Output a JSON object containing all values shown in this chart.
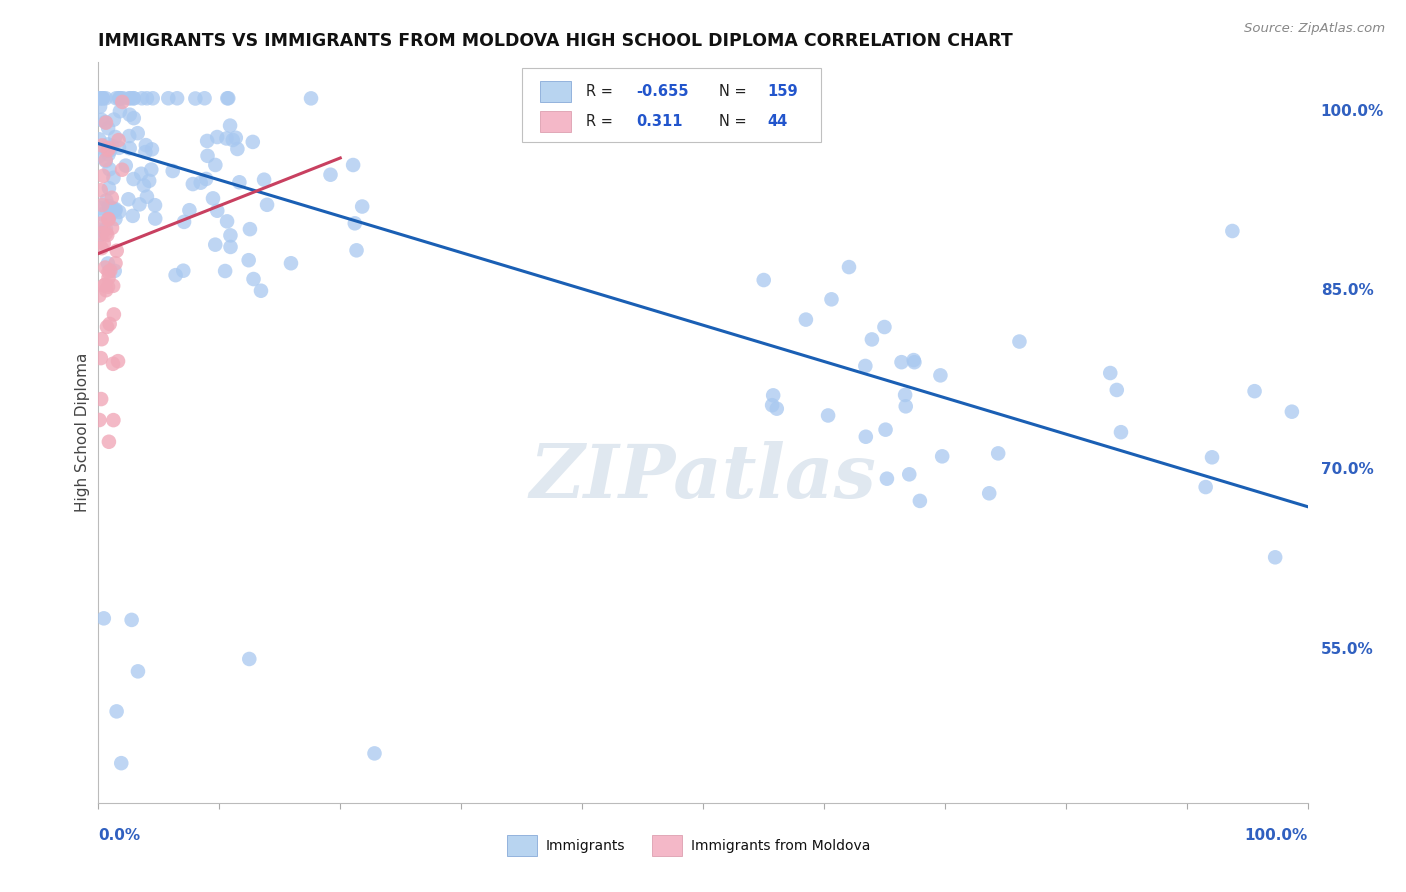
{
  "title": "IMMIGRANTS VS IMMIGRANTS FROM MOLDOVA HIGH SCHOOL DIPLOMA CORRELATION CHART",
  "source": "Source: ZipAtlas.com",
  "ylabel": "High School Diploma",
  "ylabel_right_ticks": [
    1.0,
    0.85,
    0.7,
    0.55
  ],
  "ylabel_right_labels": [
    "100.0%",
    "85.0%",
    "70.0%",
    "55.0%"
  ],
  "blue_R": -0.655,
  "blue_N": 159,
  "pink_R": 0.311,
  "pink_N": 44,
  "blue_color": "#a8c8f0",
  "pink_color": "#f0a8b8",
  "blue_line_color": "#1a5fb4",
  "pink_line_color": "#c84060",
  "watermark": "ZIPatlas",
  "background_color": "#ffffff",
  "grid_color": "#d8d8d8",
  "xlim": [
    0.0,
    1.0
  ],
  "ylim": [
    0.42,
    1.04
  ],
  "blue_line_x": [
    0.0,
    1.0
  ],
  "blue_line_y": [
    0.972,
    0.668
  ],
  "pink_line_x": [
    0.0,
    0.2
  ],
  "pink_line_y": [
    0.88,
    0.96
  ]
}
